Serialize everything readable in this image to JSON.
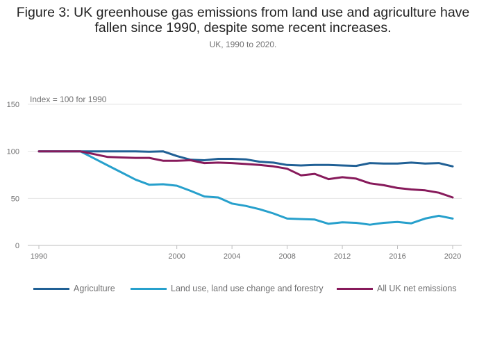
{
  "header": {
    "title_line1": "Figure 3: UK greenhouse gas emissions from land use and agriculture have",
    "title_line2": "fallen since 1990, despite some recent increases.",
    "subtitle": "UK, 1990 to 2020."
  },
  "chart_data": {
    "type": "line",
    "title": "Figure 3: UK greenhouse gas emissions from land use and agriculture have fallen since 1990, despite some recent increases.",
    "subtitle": "UK, 1990 to 2020.",
    "ylabel": "Index = 100 for 1990",
    "xlabel": "",
    "ylim": [
      0,
      150
    ],
    "xlim": [
      1990,
      2020
    ],
    "y_ticks": [
      0,
      50,
      100,
      150
    ],
    "x_ticks": [
      1990,
      2000,
      2004,
      2008,
      2012,
      2016,
      2020
    ],
    "grid": "horizontal",
    "legend_position": "bottom",
    "x": [
      1990,
      1991,
      1992,
      1993,
      1994,
      1995,
      1996,
      1997,
      1998,
      1999,
      2000,
      2001,
      2002,
      2003,
      2004,
      2005,
      2006,
      2007,
      2008,
      2009,
      2010,
      2011,
      2012,
      2013,
      2014,
      2015,
      2016,
      2017,
      2018,
      2019,
      2020
    ],
    "series": [
      {
        "name": "Agriculture",
        "color": "#206095",
        "values": [
          100,
          100,
          100,
          100,
          100,
          100,
          100,
          100,
          99.5,
          100,
          95,
          91,
          90.5,
          92,
          92,
          91.5,
          89,
          88,
          85.5,
          85,
          85.5,
          85.5,
          85,
          84.5,
          87.5,
          87,
          87,
          88,
          87,
          87.5,
          84
        ]
      },
      {
        "name": "Land use, land use change and forestry",
        "color": "#27A0CC",
        "values": [
          100,
          100,
          100,
          100,
          92.5,
          85,
          77.5,
          70,
          64.5,
          65,
          63.5,
          58,
          52,
          51,
          44.5,
          42,
          38.5,
          34,
          28.5,
          28,
          27.5,
          23,
          24.5,
          24,
          22,
          24,
          25,
          23.5,
          28.5,
          31.5,
          28.5
        ]
      },
      {
        "name": "All UK net emissions",
        "color": "#871A5B",
        "values": [
          100,
          100,
          100,
          100,
          97,
          94,
          93.5,
          93,
          93,
          90,
          90,
          90.5,
          87.5,
          88,
          87.5,
          86.5,
          85.5,
          84,
          81.5,
          74.5,
          76,
          70.5,
          72.5,
          71,
          66,
          64,
          61,
          59.5,
          58.5,
          56,
          51
        ]
      }
    ]
  }
}
